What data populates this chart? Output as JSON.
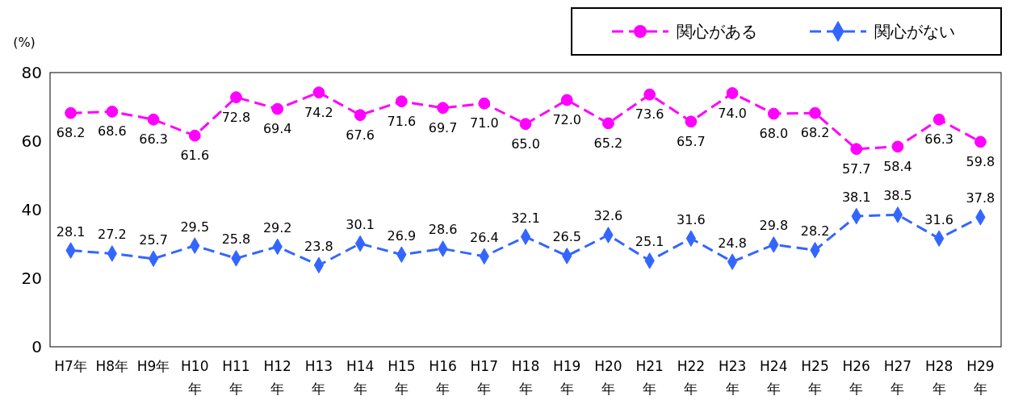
{
  "chart_data": {
    "type": "line",
    "ylabel": "(%)",
    "categories": [
      "H7年",
      "H8年",
      "H9年",
      "H10年",
      "H11年",
      "H12年",
      "H13年",
      "H14年",
      "H15年",
      "H16年",
      "H17年",
      "H18年",
      "H19年",
      "H20年",
      "H21年",
      "H22年",
      "H23年",
      "H24年",
      "H25年",
      "H26年",
      "H27年",
      "H28年",
      "H29年"
    ],
    "series": [
      {
        "name": "関心がある",
        "color": "#ff00ff",
        "marker": "circle",
        "line_style": "dashed",
        "values": [
          68.2,
          68.6,
          66.3,
          61.6,
          72.8,
          69.4,
          74.2,
          67.6,
          71.6,
          69.7,
          71.0,
          65.0,
          72.0,
          65.2,
          73.6,
          65.7,
          74.0,
          68.0,
          68.2,
          57.7,
          58.4,
          66.3,
          59.8
        ],
        "value_labels": [
          "68.2",
          "68.6",
          "66.3",
          "61.6",
          "72.8",
          "69.4",
          "74.2",
          "67.6",
          "71.6",
          "69.7",
          "71.0",
          "65.0",
          "72.0",
          "65.2",
          "73.6",
          "65.7",
          "74.0",
          "68.0",
          "68.2",
          "57.7",
          "58.4",
          "66.3",
          "59.8"
        ]
      },
      {
        "name": "関心がない",
        "color": "#3366ff",
        "marker": "diamond",
        "line_style": "dashed",
        "values": [
          28.1,
          27.2,
          25.7,
          29.5,
          25.8,
          29.2,
          23.8,
          30.1,
          26.9,
          28.6,
          26.4,
          32.1,
          26.5,
          32.6,
          25.1,
          31.6,
          24.8,
          29.8,
          28.2,
          38.1,
          38.5,
          31.6,
          37.8
        ],
        "value_labels": [
          "28.1",
          "27.2",
          "25.7",
          "29.5",
          "25.8",
          "29.2",
          "23.8",
          "30.1",
          "26.9",
          "28.6",
          "26.4",
          "32.1",
          "26.5",
          "32.6",
          "25.1",
          "31.6",
          "24.8",
          "29.8",
          "28.2",
          "38.1",
          "38.5",
          "31.6",
          "37.8"
        ]
      }
    ],
    "ylim": [
      0,
      80
    ],
    "yticks": [
      0,
      20,
      40,
      60,
      80
    ],
    "grid": false,
    "legend": "top right"
  }
}
